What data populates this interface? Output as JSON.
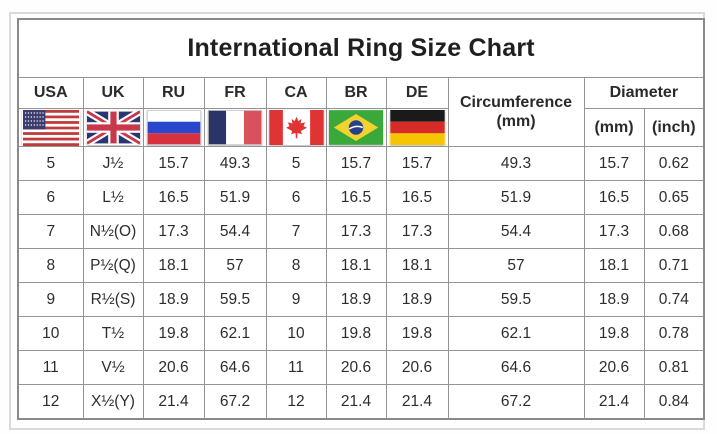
{
  "chart_data": {
    "type": "table",
    "title": "International Ring Size Chart",
    "column_groups": {
      "countries": [
        "USA",
        "UK",
        "RU",
        "FR",
        "CA",
        "BR",
        "DE"
      ],
      "circumference": {
        "label": "Circumference",
        "unit": "(mm)"
      },
      "diameter": {
        "label": "Diameter",
        "units": [
          "(mm)",
          "(inch)"
        ]
      }
    },
    "columns": [
      "USA",
      "UK",
      "RU",
      "FR",
      "CA",
      "BR",
      "DE",
      "Circumference (mm)",
      "Diameter (mm)",
      "Diameter (inch)"
    ],
    "rows": [
      [
        "5",
        "J½",
        "15.7",
        "49.3",
        "5",
        "15.7",
        "15.7",
        "49.3",
        "15.7",
        "0.62"
      ],
      [
        "6",
        "L½",
        "16.5",
        "51.9",
        "6",
        "16.5",
        "16.5",
        "51.9",
        "16.5",
        "0.65"
      ],
      [
        "7",
        "N½(O)",
        "17.3",
        "54.4",
        "7",
        "17.3",
        "17.3",
        "54.4",
        "17.3",
        "0.68"
      ],
      [
        "8",
        "P½(Q)",
        "18.1",
        "57",
        "8",
        "18.1",
        "18.1",
        "57",
        "18.1",
        "0.71"
      ],
      [
        "9",
        "R½(S)",
        "18.9",
        "59.5",
        "9",
        "18.9",
        "18.9",
        "59.5",
        "18.9",
        "0.74"
      ],
      [
        "10",
        "T½",
        "19.8",
        "62.1",
        "10",
        "19.8",
        "19.8",
        "62.1",
        "19.8",
        "0.78"
      ],
      [
        "11",
        "V½",
        "20.6",
        "64.6",
        "11",
        "20.6",
        "20.6",
        "64.6",
        "20.6",
        "0.81"
      ],
      [
        "12",
        "X½(Y)",
        "21.4",
        "67.2",
        "12",
        "21.4",
        "21.4",
        "67.2",
        "21.4",
        "0.84"
      ]
    ]
  },
  "flags": [
    {
      "icon": "usa-flag-icon",
      "country": "USA"
    },
    {
      "icon": "uk-flag-icon",
      "country": "UK"
    },
    {
      "icon": "ru-flag-icon",
      "country": "RU"
    },
    {
      "icon": "fr-flag-icon",
      "country": "FR"
    },
    {
      "icon": "ca-flag-icon",
      "country": "CA"
    },
    {
      "icon": "br-flag-icon",
      "country": "BR"
    },
    {
      "icon": "de-flag-icon",
      "country": "DE"
    }
  ],
  "colors": {
    "grid_border": "#949494",
    "outer_frame": "#dadada",
    "text": "#2d2d2d",
    "usa_blue": "#3c3b6e",
    "usa_red": "#c03a3a",
    "uk_blue": "#2a3672",
    "uk_red": "#c8374b",
    "ru_blue": "#2847cc",
    "ru_red": "#d5313f",
    "fr_blue": "#2b3467",
    "fr_red": "#d8515c",
    "ca_red": "#e03434",
    "br_green": "#3aa83a",
    "br_yellow": "#f2d22e",
    "br_blue": "#26408c",
    "de_black": "#1a1a1a",
    "de_red": "#d62b27",
    "de_gold": "#f4c500"
  }
}
